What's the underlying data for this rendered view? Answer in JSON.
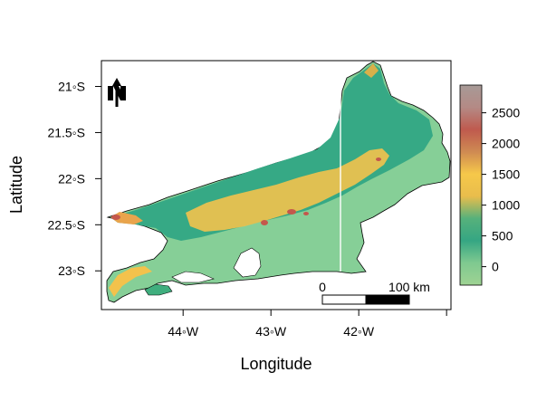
{
  "map": {
    "xlabel": "Longitude",
    "ylabel": "Latitude",
    "x_ticks": [
      {
        "value": -44,
        "label": "44◦W"
      },
      {
        "value": -43,
        "label": "43◦W"
      },
      {
        "value": -42,
        "label": "42◦W"
      },
      {
        "value": -41,
        "label": ""
      }
    ],
    "y_ticks": [
      {
        "value": -21,
        "label": "21◦S"
      },
      {
        "value": -21.5,
        "label": "21.5◦S"
      },
      {
        "value": -22,
        "label": "22◦S"
      },
      {
        "value": -22.5,
        "label": "22.5◦S"
      },
      {
        "value": -23,
        "label": "23◦S"
      }
    ],
    "xlim": [
      -44.93,
      -40.95
    ],
    "ylim": [
      -23.42,
      -20.72
    ],
    "north_arrow": {
      "icon": "north-arrow-icon",
      "letter": "N"
    },
    "scale_bar": {
      "label_start": "0",
      "label_end": "100 km"
    },
    "elevation_legend": {
      "range": [
        -300,
        2950
      ],
      "ticks": [
        {
          "value": 0,
          "label": "0"
        },
        {
          "value": 500,
          "label": "500"
        },
        {
          "value": 1000,
          "label": "1000"
        },
        {
          "value": 1500,
          "label": "1500"
        },
        {
          "value": 2000,
          "label": "2000"
        },
        {
          "value": 2500,
          "label": "2500"
        }
      ],
      "colors": [
        "#9fd393",
        "#7fc990",
        "#35a683",
        "#56b17b",
        "#e9bd4c",
        "#f6c84a",
        "#cf8a52",
        "#bf5a4e",
        "#b48a85",
        "#a79a97"
      ]
    },
    "colors": {
      "lowland": "#86cf97",
      "midland": "#36a985",
      "highland": "#f3c24c",
      "peak": "#c4574c",
      "water": "#ffffff",
      "frame": "#000000"
    }
  }
}
